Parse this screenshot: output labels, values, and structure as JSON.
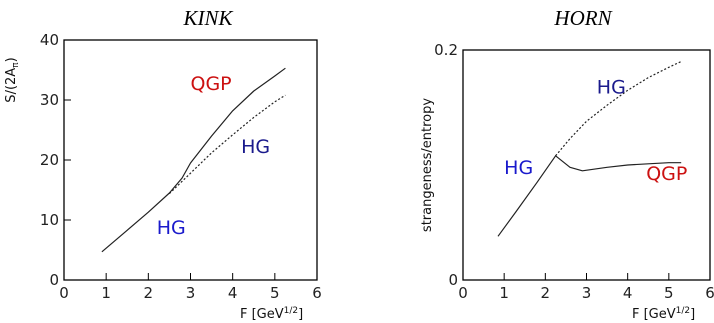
{
  "chart_data": [
    {
      "type": "line",
      "title": "KINK",
      "xlabel": "F [GeV",
      "xlabel_sup": "1/2",
      "xlabel_close": "]",
      "ylabel": "S/(2A",
      "ylabel_sub": "π",
      "ylabel_close": ")",
      "xlim": [
        0,
        6
      ],
      "ylim": [
        0,
        40
      ],
      "xticks": [
        "0",
        "1",
        "2",
        "3",
        "4",
        "5",
        "6"
      ],
      "yticks": [
        "0",
        "10",
        "20",
        "30",
        "40"
      ],
      "series": [
        {
          "style": "solid",
          "points": [
            [
              0.9,
              4.7
            ],
            [
              1.5,
              8.3
            ],
            [
              2.0,
              11.3
            ],
            [
              2.5,
              14.5
            ],
            [
              2.8,
              17.0
            ],
            [
              3.0,
              19.5
            ],
            [
              3.5,
              24.0
            ],
            [
              4.0,
              28.2
            ],
            [
              4.5,
              31.5
            ],
            [
              5.0,
              34.0
            ],
            [
              5.25,
              35.3
            ]
          ]
        },
        {
          "style": "dashed",
          "points": [
            [
              2.5,
              14.4
            ],
            [
              3.0,
              17.8
            ],
            [
              3.5,
              21.2
            ],
            [
              4.0,
              24.2
            ],
            [
              4.5,
              27.1
            ],
            [
              5.0,
              29.7
            ],
            [
              5.25,
              30.8
            ]
          ]
        }
      ],
      "annotations": [
        {
          "text": "QGP",
          "x": 3.0,
          "y": 31.7,
          "color": "#cc1111"
        },
        {
          "text": "HG",
          "x": 4.2,
          "y": 21.2,
          "color": "#1a1a8c"
        },
        {
          "text": "HG",
          "x": 2.2,
          "y": 7.7,
          "color": "#1a1acc"
        }
      ]
    },
    {
      "type": "line",
      "title": "HORN",
      "xlabel": "F [GeV",
      "xlabel_sup": "1/2",
      "xlabel_close": "]",
      "ylabel": "strangeness/entropy",
      "xlim": [
        0,
        6
      ],
      "ylim": [
        0,
        0.2
      ],
      "xticks": [
        "0",
        "1",
        "2",
        "3",
        "4",
        "5",
        "6"
      ],
      "yticks": [
        "0",
        "0.2"
      ],
      "series": [
        {
          "style": "solid",
          "points": [
            [
              0.85,
              0.038
            ],
            [
              1.3,
              0.06
            ],
            [
              1.8,
              0.085
            ],
            [
              2.25,
              0.108
            ],
            [
              2.6,
              0.098
            ],
            [
              2.9,
              0.095
            ],
            [
              3.5,
              0.098
            ],
            [
              4.0,
              0.1
            ],
            [
              4.5,
              0.101
            ],
            [
              5.0,
              0.102
            ],
            [
              5.3,
              0.102
            ]
          ]
        },
        {
          "style": "dashed",
          "points": [
            [
              2.25,
              0.108
            ],
            [
              2.6,
              0.123
            ],
            [
              3.0,
              0.138
            ],
            [
              3.5,
              0.152
            ],
            [
              4.0,
              0.165
            ],
            [
              4.5,
              0.176
            ],
            [
              5.0,
              0.185
            ],
            [
              5.3,
              0.19
            ]
          ]
        }
      ],
      "annotations": [
        {
          "text": "HG",
          "x": 3.25,
          "y": 0.162,
          "color": "#1a1a8c"
        },
        {
          "text": "HG",
          "x": 1.0,
          "y": 0.092,
          "color": "#1a1acc"
        },
        {
          "text": "QGP",
          "x": 4.45,
          "y": 0.087,
          "color": "#cc1111"
        }
      ]
    }
  ]
}
